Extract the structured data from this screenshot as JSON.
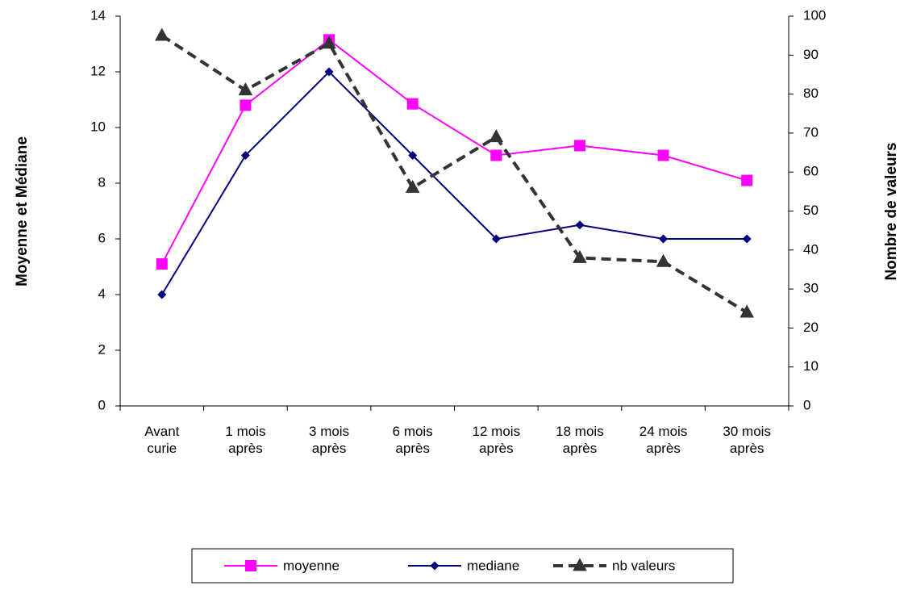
{
  "chart_data": {
    "type": "line",
    "categories": [
      "Avant\ncurie",
      "1 mois\naprès",
      "3 mois\naprès",
      "6 mois\naprès",
      "12 mois\naprès",
      "18 mois\naprès",
      "24 mois\naprès",
      "30 mois\naprès"
    ],
    "y_label": "Moyenne et Médiane",
    "y2_label": "Nombre de valeurs",
    "ylim": [
      0,
      14
    ],
    "yticks": [
      0,
      2,
      4,
      6,
      8,
      10,
      12,
      14
    ],
    "y2lim": [
      0,
      100
    ],
    "y2ticks": [
      0,
      10,
      20,
      30,
      40,
      50,
      60,
      70,
      80,
      90,
      100
    ],
    "legend": "bottom",
    "series": [
      {
        "name": "moyenne",
        "color": "#ff00ff",
        "marker": "square",
        "dashed": false,
        "values": [
          5.1,
          10.8,
          13.15,
          10.85,
          9.0,
          9.35,
          9.0,
          8.1
        ]
      },
      {
        "name": "mediane",
        "color": "#000080",
        "marker": "diamond",
        "dashed": false,
        "values": [
          4,
          9,
          12,
          9,
          6,
          6.5,
          6,
          6
        ]
      },
      {
        "name": "nb valeurs",
        "color": "#333333",
        "marker": "triangle",
        "dashed": true,
        "axis": "y2",
        "values": [
          95,
          81,
          93,
          56,
          69,
          38,
          37,
          24
        ]
      }
    ]
  }
}
